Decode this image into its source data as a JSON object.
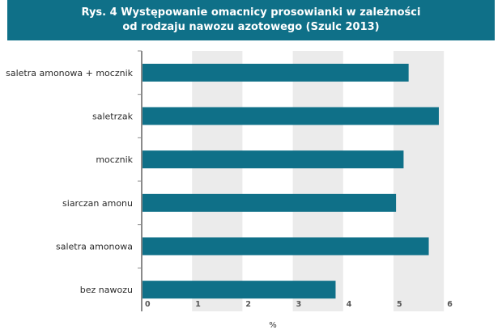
{
  "chart_data": {
    "type": "bar",
    "orientation": "horizontal",
    "title": [
      "Rys. 4 Występowanie omacnicy prosowianki w zależności",
      "od rodzaju nawozu azotowego  (Szulc 2013)"
    ],
    "categories": [
      "saletra amonowa + mocznik",
      "saletrzak",
      "mocznik",
      "siarczan amonu",
      "saletra amonowa",
      "bez nawozu"
    ],
    "values": [
      5.3,
      5.9,
      5.2,
      5.05,
      5.7,
      3.85
    ],
    "xlabel": "%",
    "ylabel": "",
    "xlim": [
      0,
      6.6
    ],
    "xticks": [
      0,
      1,
      2,
      3,
      4,
      5,
      6
    ],
    "bar_color": "#0f7088",
    "band_color": "#ebebeb",
    "grid": false,
    "legend": "none"
  }
}
